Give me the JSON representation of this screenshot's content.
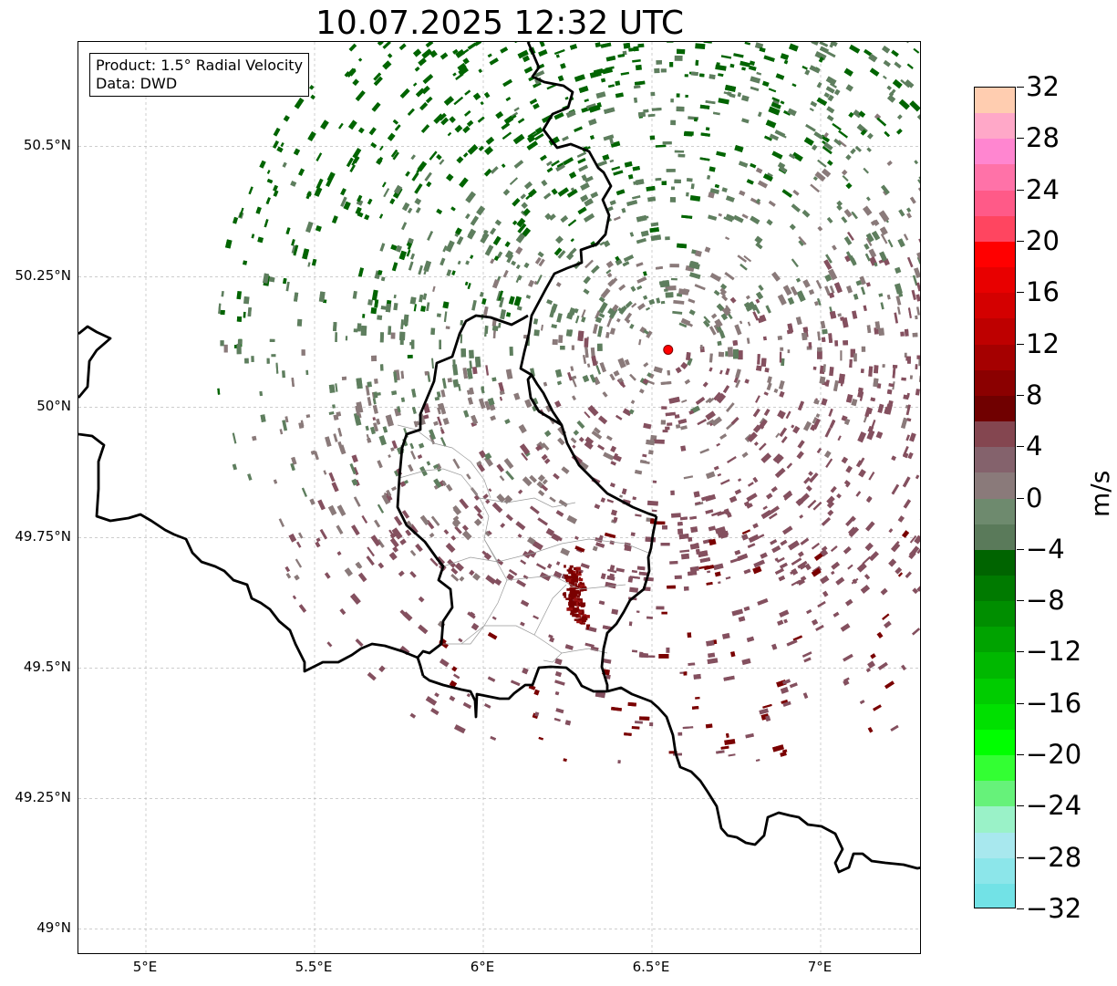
{
  "title": "10.07.2025 12:32 UTC",
  "info": {
    "product": "Product: 1.5° Radial Velocity",
    "data_source": "Data: DWD"
  },
  "map": {
    "lon_range": [
      4.8,
      7.3
    ],
    "lat_range": [
      48.95,
      50.7
    ],
    "lon_ticks": [
      {
        "value": 5.0,
        "label": "5°E"
      },
      {
        "value": 5.5,
        "label": "5.5°E"
      },
      {
        "value": 6.0,
        "label": "6°E"
      },
      {
        "value": 6.5,
        "label": "6.5°E"
      },
      {
        "value": 7.0,
        "label": "7°E"
      }
    ],
    "lat_ticks": [
      {
        "value": 50.5,
        "label": "50.5°N"
      },
      {
        "value": 50.25,
        "label": "50.25°N"
      },
      {
        "value": 50.0,
        "label": "50°N"
      },
      {
        "value": 49.75,
        "label": "49.75°N"
      },
      {
        "value": 49.5,
        "label": "49.5°N"
      },
      {
        "value": 49.25,
        "label": "49.25°N"
      },
      {
        "value": 49.0,
        "label": "49°N"
      }
    ],
    "gridlines": true,
    "radar_site": {
      "lon": 6.548,
      "lat": 50.11,
      "color": "#ff0000"
    },
    "radar_range_km": 90,
    "echo_colors": {
      "approaching_strong": "#006400",
      "approaching_weak": "#5e7e5e",
      "near_zero": "#8a7a7a",
      "receding_weak": "#84505f",
      "receding_strong": "#7a0000"
    },
    "border_color": "#000000",
    "district_color": "#999999"
  },
  "colorbar": {
    "unit": "m/s",
    "min": -32,
    "max": 32,
    "ticks": [
      {
        "value": 32,
        "label": "32"
      },
      {
        "value": 28,
        "label": "28"
      },
      {
        "value": 24,
        "label": "24"
      },
      {
        "value": 20,
        "label": "20"
      },
      {
        "value": 16,
        "label": "16"
      },
      {
        "value": 12,
        "label": "12"
      },
      {
        "value": 8,
        "label": "8"
      },
      {
        "value": 4,
        "label": "4"
      },
      {
        "value": 0,
        "label": "0"
      },
      {
        "value": -4,
        "label": "−4"
      },
      {
        "value": -8,
        "label": "−8"
      },
      {
        "value": -12,
        "label": "−12"
      },
      {
        "value": -16,
        "label": "−16"
      },
      {
        "value": -20,
        "label": "−20"
      },
      {
        "value": -24,
        "label": "−24"
      },
      {
        "value": -28,
        "label": "−28"
      },
      {
        "value": -32,
        "label": "−32"
      }
    ],
    "bins": [
      {
        "from": 30,
        "to": 32,
        "color": "#ffcdb0"
      },
      {
        "from": 28,
        "to": 30,
        "color": "#ffa8c8"
      },
      {
        "from": 26,
        "to": 28,
        "color": "#ff86d0"
      },
      {
        "from": 24,
        "to": 26,
        "color": "#ff72a8"
      },
      {
        "from": 22,
        "to": 24,
        "color": "#ff5a88"
      },
      {
        "from": 20,
        "to": 22,
        "color": "#ff4560"
      },
      {
        "from": 18,
        "to": 20,
        "color": "#ff0000"
      },
      {
        "from": 16,
        "to": 18,
        "color": "#e80000"
      },
      {
        "from": 14,
        "to": 16,
        "color": "#d40000"
      },
      {
        "from": 12,
        "to": 14,
        "color": "#be0000"
      },
      {
        "from": 10,
        "to": 12,
        "color": "#a50000"
      },
      {
        "from": 8,
        "to": 10,
        "color": "#8b0000"
      },
      {
        "from": 6,
        "to": 8,
        "color": "#700000"
      },
      {
        "from": 4,
        "to": 6,
        "color": "#844650"
      },
      {
        "from": 2,
        "to": 4,
        "color": "#84626c"
      },
      {
        "from": 0,
        "to": 2,
        "color": "#8a7a7a"
      },
      {
        "from": -2,
        "to": 0,
        "color": "#6e8a6e"
      },
      {
        "from": -4,
        "to": -2,
        "color": "#5a7a5a"
      },
      {
        "from": -6,
        "to": -4,
        "color": "#006400"
      },
      {
        "from": -8,
        "to": -6,
        "color": "#007a00"
      },
      {
        "from": -10,
        "to": -8,
        "color": "#008e00"
      },
      {
        "from": -12,
        "to": -10,
        "color": "#00a300"
      },
      {
        "from": -14,
        "to": -12,
        "color": "#00b800"
      },
      {
        "from": -16,
        "to": -14,
        "color": "#00cc00"
      },
      {
        "from": -18,
        "to": -16,
        "color": "#00e000"
      },
      {
        "from": -20,
        "to": -18,
        "color": "#00ff00"
      },
      {
        "from": -22,
        "to": -20,
        "color": "#33ff33"
      },
      {
        "from": -24,
        "to": -22,
        "color": "#66f27a"
      },
      {
        "from": -26,
        "to": -24,
        "color": "#9af2c8"
      },
      {
        "from": -28,
        "to": -26,
        "color": "#a8e8ee"
      },
      {
        "from": -30,
        "to": -28,
        "color": "#8ce6ea"
      },
      {
        "from": -32,
        "to": -30,
        "color": "#72e2e6"
      }
    ]
  }
}
